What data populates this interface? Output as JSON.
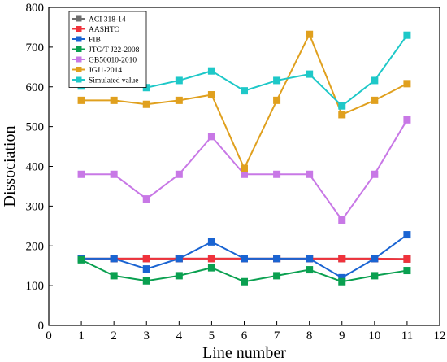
{
  "chart_data": {
    "type": "line",
    "xlabel": "Line number",
    "ylabel": "Dissociation",
    "xlim": [
      0,
      12
    ],
    "ylim": [
      0,
      800
    ],
    "xticks": [
      0,
      1,
      2,
      3,
      4,
      5,
      6,
      7,
      8,
      9,
      10,
      11,
      12
    ],
    "yticks": [
      0,
      100,
      200,
      300,
      400,
      500,
      600,
      700,
      800
    ],
    "grid": false,
    "legend_position": "top-left",
    "x": [
      1,
      2,
      3,
      4,
      5,
      6,
      7,
      8,
      9,
      10,
      11
    ],
    "series": [
      {
        "name": "ACI 318-14",
        "color": "#6e6e6e",
        "values": [
          168,
          168,
          168,
          168,
          168,
          168,
          168,
          168,
          168,
          168,
          167
        ]
      },
      {
        "name": "AASHTO",
        "color": "#f0323c",
        "values": [
          168,
          168,
          168,
          168,
          168,
          168,
          168,
          168,
          168,
          168,
          167
        ]
      },
      {
        "name": "FIB",
        "color": "#1a64d2",
        "values": [
          168,
          168,
          142,
          168,
          210,
          168,
          168,
          168,
          120,
          168,
          228
        ]
      },
      {
        "name": "JTG/T J22-2008",
        "color": "#0aa050",
        "values": [
          165,
          125,
          112,
          125,
          145,
          110,
          125,
          140,
          110,
          125,
          138
        ]
      },
      {
        "name": "GB50010-2010",
        "color": "#c878e6",
        "values": [
          380,
          380,
          318,
          380,
          475,
          380,
          380,
          380,
          265,
          380,
          517
        ]
      },
      {
        "name": "JGJ1-2014",
        "color": "#e0a01e",
        "values": [
          566,
          566,
          556,
          566,
          580,
          395,
          566,
          732,
          530,
          566,
          608
        ]
      },
      {
        "name": "Simulated value",
        "color": "#1ec8c8",
        "values": [
          602,
          616,
          598,
          616,
          640,
          590,
          616,
          632,
          552,
          616,
          730
        ]
      }
    ]
  }
}
